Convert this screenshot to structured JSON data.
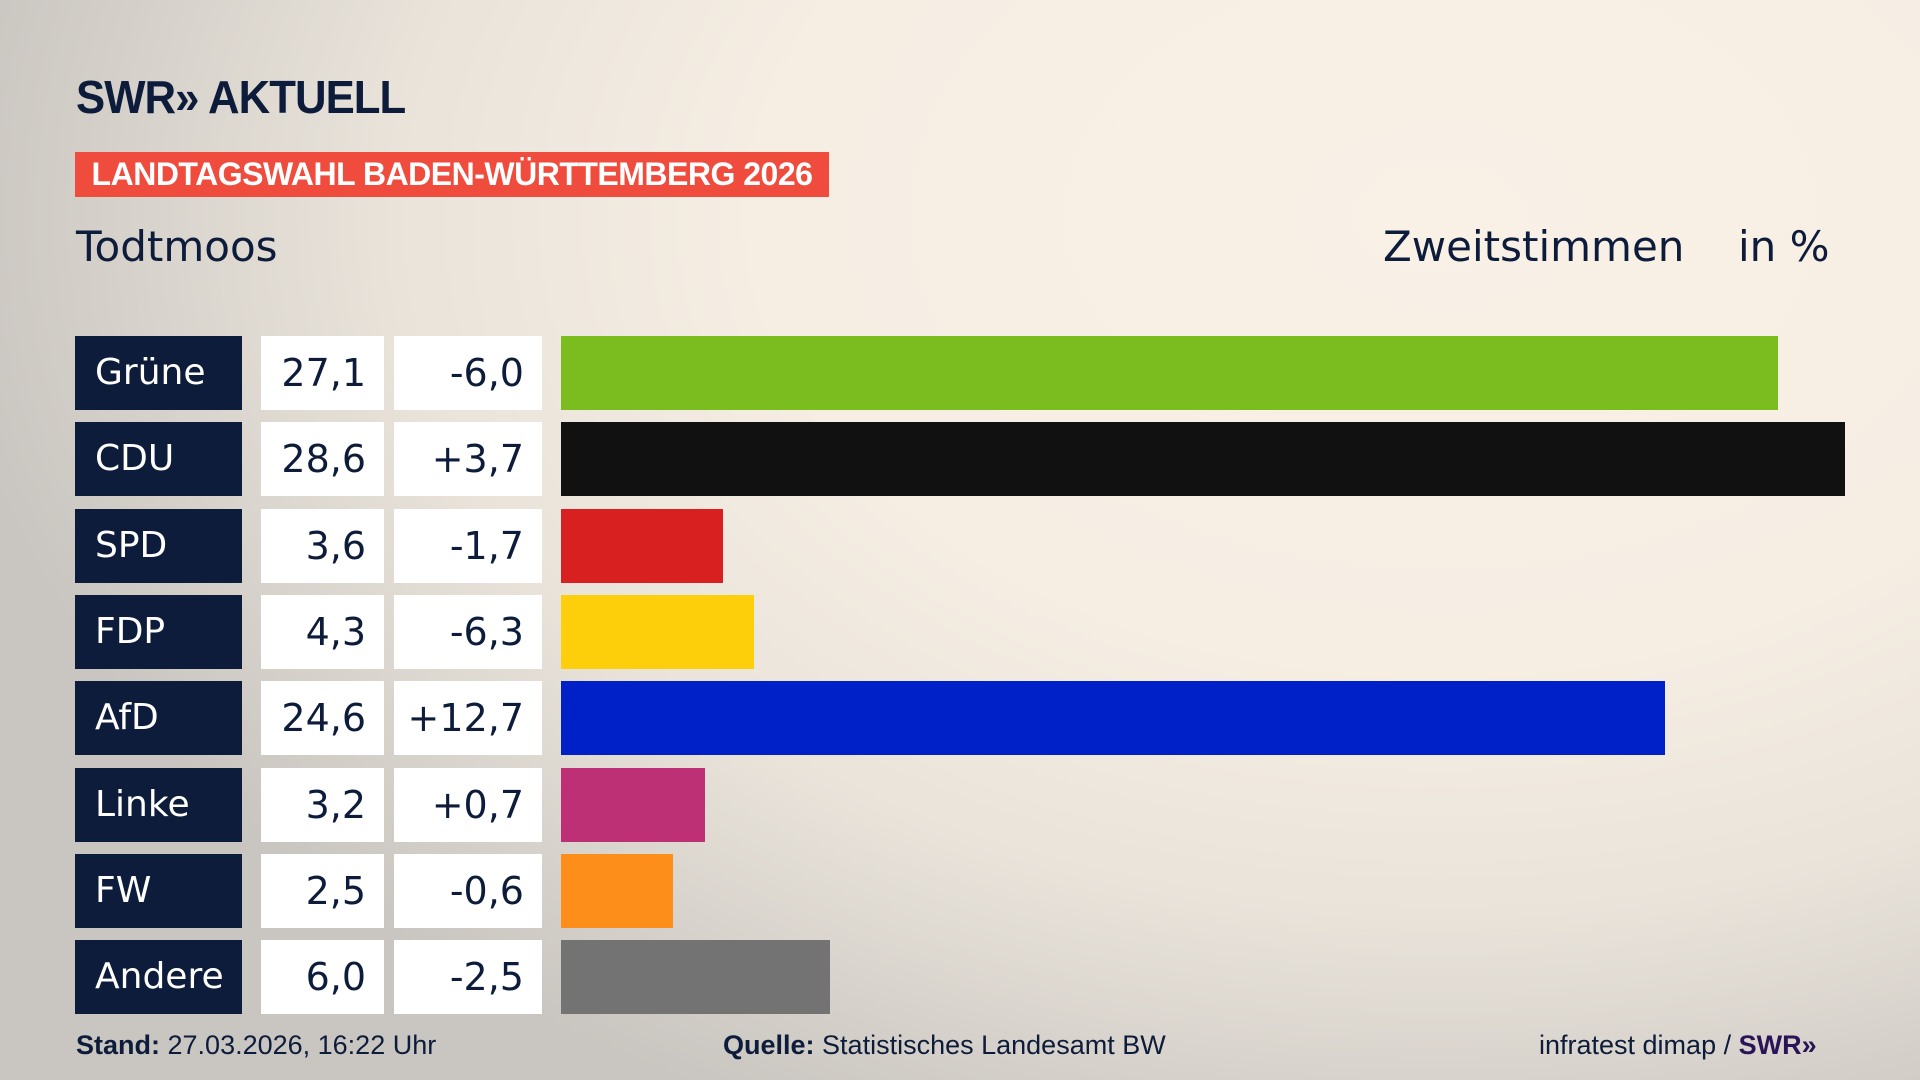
{
  "header": {
    "logo": "SWR» AKTUELL",
    "banner": "LANDTAGSWAHL BADEN-WÜRTTEMBERG 2026",
    "place": "Todtmoos",
    "vote_type": "Zweitstimmen",
    "unit": "in %"
  },
  "chart_data": {
    "type": "bar",
    "orientation": "horizontal",
    "categories": [
      "Grüne",
      "CDU",
      "SPD",
      "FDP",
      "AfD",
      "Linke",
      "FW",
      "Andere"
    ],
    "values": [
      27.1,
      28.6,
      3.6,
      4.3,
      24.6,
      3.2,
      2.5,
      6.0
    ],
    "value_labels": [
      "27,1",
      "28,6",
      "3,6",
      "4,3",
      "24,6",
      "3,2",
      "2,5",
      "6,0"
    ],
    "changes": [
      -6.0,
      3.7,
      -1.7,
      -6.3,
      12.7,
      0.7,
      -0.6,
      -2.5
    ],
    "change_labels": [
      "-6,0",
      "+3,7",
      "-1,7",
      "-6,3",
      "+12,7",
      "+0,7",
      "-0,6",
      "-2,5"
    ],
    "colors": [
      "#7bbd1e",
      "#111111",
      "#d7201f",
      "#fdcf0a",
      "#0021c8",
      "#bd3075",
      "#fd8e1a",
      "#737373"
    ],
    "xlim": [
      0,
      28.6
    ],
    "grid": false
  },
  "footer": {
    "stand_label": "Stand:",
    "stand_value": "27.03.2026, 16:22 Uhr",
    "source_label": "Quelle:",
    "source_value": "Statistisches Landesamt BW",
    "credit": "infratest dimap /",
    "credit_logo": "SWR»"
  }
}
